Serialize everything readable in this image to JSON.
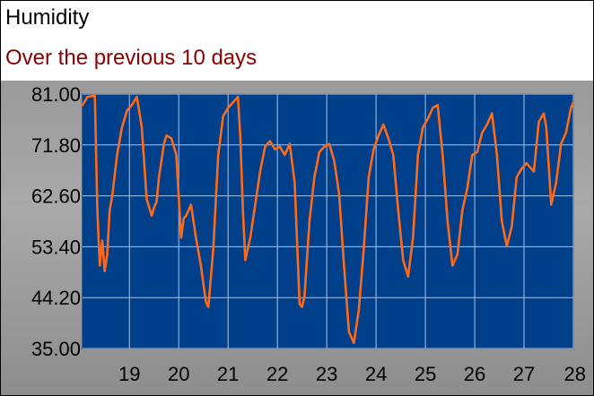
{
  "title": "Humidity",
  "subtitle": "Over the previous 10 days",
  "colors": {
    "plot_bg": "#003f8a",
    "line": "#ff6a1a",
    "grid": "#a9c4e6",
    "subtitle": "#8b0000"
  },
  "chart_data": {
    "type": "line",
    "title": "Humidity",
    "subtitle": "Over the previous 10 days",
    "xlabel": "",
    "ylabel": "",
    "xlim": [
      18.05,
      28.0
    ],
    "ylim": [
      35.0,
      81.0
    ],
    "grid": true,
    "legend": "none",
    "x_ticks": [
      "19",
      "20",
      "21",
      "22",
      "23",
      "24",
      "25",
      "26",
      "27",
      "28"
    ],
    "y_ticks": [
      "35.00",
      "44.20",
      "53.40",
      "62.60",
      "71.80",
      "81.00"
    ],
    "series": [
      {
        "name": "",
        "x": [
          18.05,
          18.15,
          18.3,
          18.35,
          18.4,
          18.45,
          18.5,
          18.55,
          18.6,
          18.65,
          18.75,
          18.85,
          18.95,
          19.05,
          19.15,
          19.25,
          19.35,
          19.45,
          19.5,
          19.55,
          19.6,
          19.65,
          19.7,
          19.75,
          19.85,
          19.95,
          20.05,
          20.1,
          20.15,
          20.25,
          20.35,
          20.45,
          20.55,
          20.6,
          20.7,
          20.8,
          20.9,
          21.0,
          21.1,
          21.2,
          21.25,
          21.3,
          21.35,
          21.45,
          21.55,
          21.65,
          21.75,
          21.85,
          21.95,
          22.05,
          22.15,
          22.25,
          22.35,
          22.45,
          22.5,
          22.55,
          22.65,
          22.75,
          22.85,
          22.95,
          23.05,
          23.15,
          23.25,
          23.35,
          23.45,
          23.55,
          23.65,
          23.75,
          23.85,
          23.95,
          24.05,
          24.15,
          24.25,
          24.35,
          24.45,
          24.55,
          24.65,
          24.75,
          24.85,
          24.95,
          25.05,
          25.15,
          25.25,
          25.35,
          25.45,
          25.55,
          25.65,
          25.75,
          25.85,
          25.95,
          26.05,
          26.15,
          26.25,
          26.35,
          26.45,
          26.55,
          26.65,
          26.75,
          26.85,
          26.95,
          27.05,
          27.1,
          27.2,
          27.3,
          27.4,
          27.45,
          27.55,
          27.65,
          27.75,
          27.85,
          27.95,
          28.0
        ],
        "values": [
          79.0,
          80.5,
          80.7,
          60.0,
          50.0,
          54.5,
          49.0,
          52.0,
          60.0,
          62.5,
          70.0,
          75.0,
          78.0,
          79.0,
          80.5,
          75.0,
          62.0,
          59.0,
          60.5,
          61.5,
          66.0,
          69.0,
          72.0,
          73.5,
          73.0,
          70.0,
          55.0,
          58.5,
          59.0,
          61.0,
          55.0,
          50.0,
          43.5,
          42.5,
          53.0,
          70.0,
          77.0,
          78.5,
          79.5,
          80.5,
          73.0,
          60.0,
          51.0,
          55.0,
          61.0,
          67.0,
          71.5,
          72.5,
          71.0,
          71.5,
          70.0,
          72.0,
          65.0,
          43.0,
          42.5,
          44.5,
          58.0,
          66.0,
          70.5,
          71.5,
          72.0,
          69.0,
          63.0,
          50.0,
          38.0,
          36.0,
          42.0,
          53.0,
          66.0,
          71.0,
          73.5,
          75.5,
          73.0,
          70.0,
          60.0,
          51.0,
          48.0,
          55.0,
          70.0,
          75.0,
          76.5,
          78.5,
          79.0,
          70.0,
          58.0,
          50.0,
          52.0,
          60.0,
          64.0,
          70.0,
          70.5,
          74.0,
          75.5,
          77.5,
          70.0,
          58.0,
          53.5,
          57.0,
          66.0,
          67.5,
          68.5,
          68.0,
          67.0,
          76.0,
          77.5,
          75.0,
          61.0,
          65.0,
          72.0,
          74.0,
          78.5,
          79.5
        ]
      }
    ]
  }
}
